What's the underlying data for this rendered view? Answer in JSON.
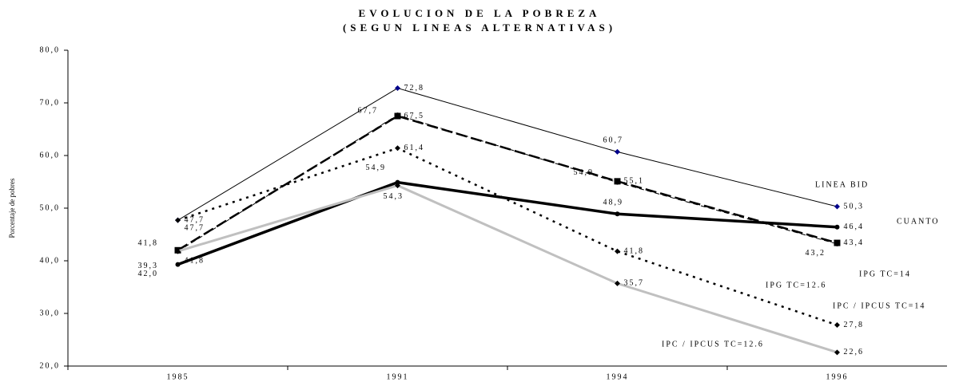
{
  "chart_data": {
    "type": "line",
    "title": "EVOLUCION DE LA POBREZA",
    "subtitle": "(SEGUN LINEAS ALTERNATIVAS)",
    "y_label": "Porcentaje de pobres",
    "categories": [
      "1985",
      "1991",
      "1994",
      "1996"
    ],
    "ylim": [
      20,
      80
    ],
    "yticks": [
      {
        "value": 20,
        "label": "20,0"
      },
      {
        "value": 30,
        "label": "30,0"
      },
      {
        "value": 40,
        "label": "40,0"
      },
      {
        "value": 50,
        "label": "50,0"
      },
      {
        "value": 60,
        "label": "60,0"
      },
      {
        "value": 70,
        "label": "70,0"
      },
      {
        "value": 80,
        "label": "80,0"
      }
    ],
    "series": [
      {
        "name": "LINEA BID",
        "color": "#000000",
        "values": [
          47.7,
          72.8,
          60.7,
          50.3
        ],
        "value_labels": [
          "47,7",
          "72,8",
          "60,7",
          "50,3"
        ]
      },
      {
        "name": "CUANTO",
        "color": "#000000",
        "values": [
          39.3,
          54.9,
          48.9,
          46.4
        ],
        "value_labels": [
          "39,3",
          "54,9",
          "48,9",
          "46,4"
        ]
      },
      {
        "name": "IPG TC=14",
        "color": "#000000",
        "values": [
          42.0,
          67.5,
          55.1,
          43.4
        ],
        "value_labels": [
          "42,0",
          "67,5",
          "55,1",
          "43,4"
        ]
      },
      {
        "name": "IPG TC=12.6",
        "color": "#000000",
        "values": [
          41.8,
          67.7,
          54.9,
          43.2
        ],
        "value_labels": [
          "41,8",
          "67,7",
          "54,9",
          "43,2"
        ]
      },
      {
        "name": "IPC / IPCUS TC=14",
        "color": "#000000",
        "values": [
          47.7,
          61.4,
          41.8,
          27.8
        ],
        "value_labels": [
          "47,7",
          "61,4",
          "41,8",
          "27,8"
        ]
      },
      {
        "name": "IPC / IPCUS TC=12.6",
        "color": "#c0c0c0",
        "values": [
          41.8,
          54.3,
          35.7,
          22.6
        ],
        "value_labels": [
          "41,8",
          "54,3",
          "35,7",
          "22,6"
        ]
      }
    ]
  }
}
